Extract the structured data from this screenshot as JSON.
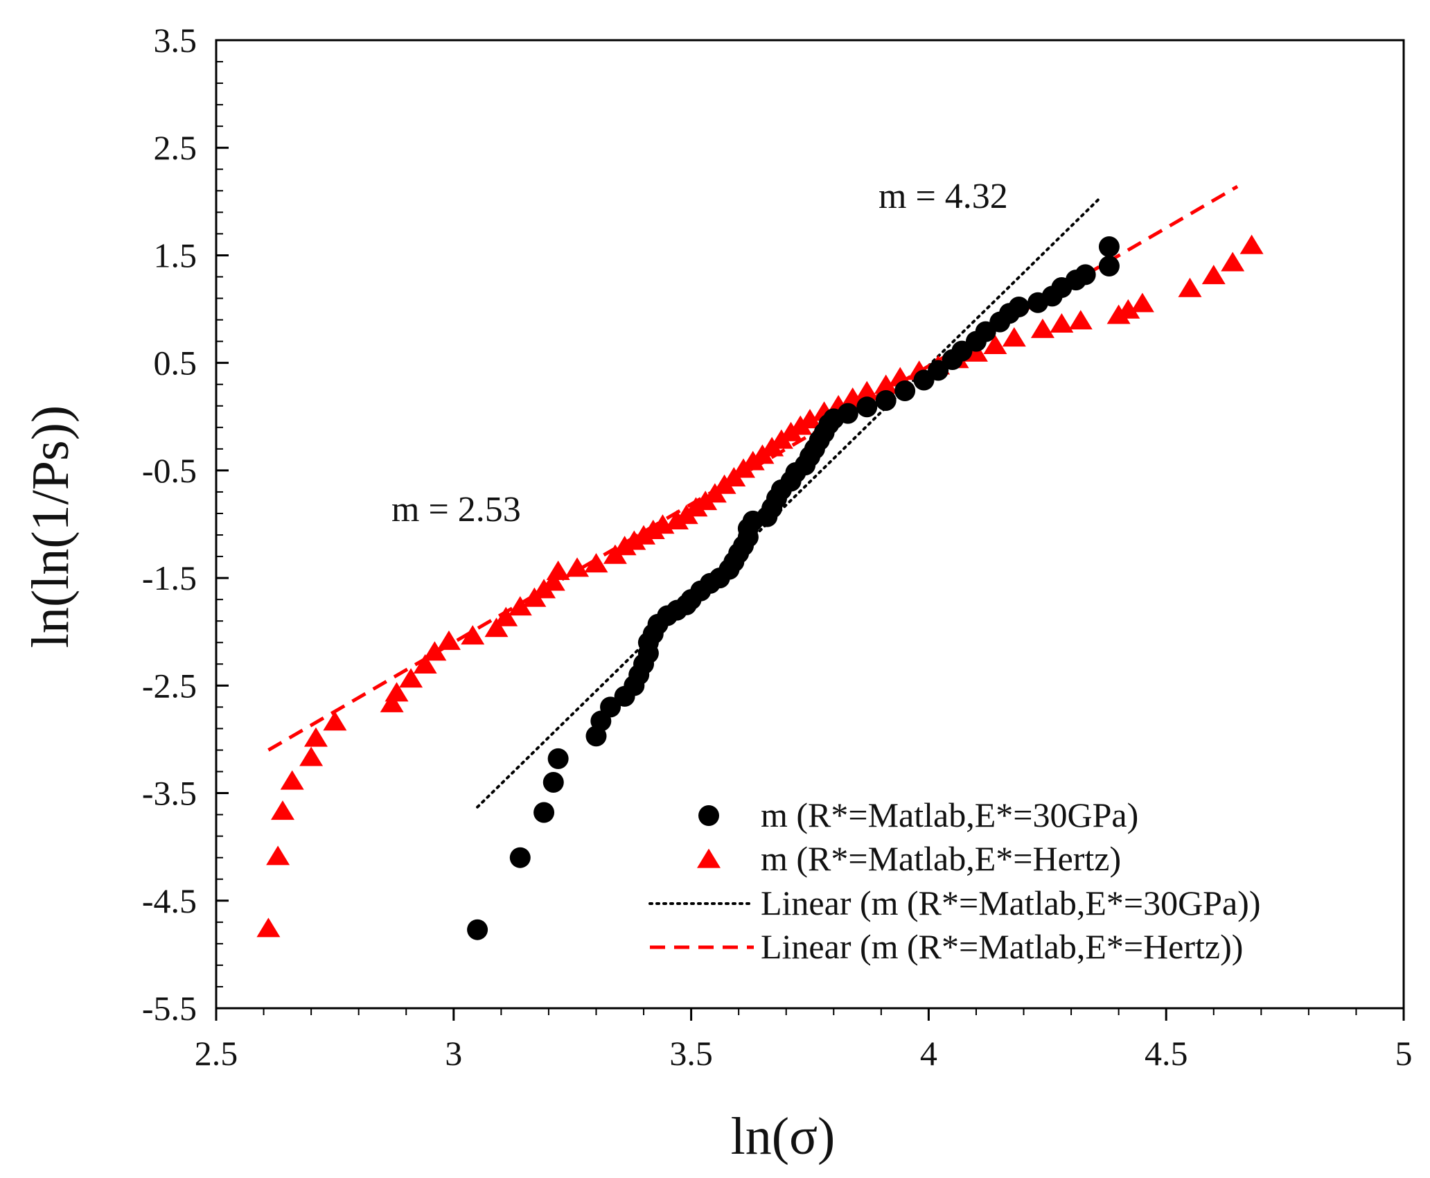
{
  "chart_data": {
    "type": "scatter",
    "title": "",
    "xlabel": "ln(σ)",
    "ylabel": "ln(ln(1/Ps))",
    "xlim": [
      2.5,
      5
    ],
    "ylim": [
      -5.5,
      3.5
    ],
    "x_ticks": [
      2.5,
      3,
      3.5,
      4,
      4.5,
      5
    ],
    "y_ticks": [
      -5.5,
      -4.5,
      -3.5,
      -2.5,
      -1.5,
      -0.5,
      0.5,
      1.5,
      2.5,
      3.5
    ],
    "x_tick_labels": [
      "2.5",
      "3",
      "3.5",
      "4",
      "4.5",
      "5"
    ],
    "y_tick_labels": [
      "-5.5",
      "-4.5",
      "-3.5",
      "-2.5",
      "-1.5",
      "-0.5",
      "0.5",
      "1.5",
      "2.5",
      "3.5"
    ],
    "grid": false,
    "legend_position": "bottom-right",
    "colors": {
      "black": "#000000",
      "red": "#ff0000"
    },
    "annotations": [
      {
        "text": "m = 4.32",
        "x": 4.02,
        "y": 2.1
      },
      {
        "text": "m = 2.53",
        "x": 3.0,
        "y": -0.85
      }
    ],
    "series": [
      {
        "name": "m (R*=Matlab,E*=30GPa)",
        "marker": "circle",
        "color": "#000000",
        "points": [
          [
            3.05,
            -4.77
          ],
          [
            3.14,
            -4.1
          ],
          [
            3.19,
            -3.68
          ],
          [
            3.21,
            -3.4
          ],
          [
            3.22,
            -3.18
          ],
          [
            3.3,
            -2.97
          ],
          [
            3.31,
            -2.83
          ],
          [
            3.33,
            -2.7
          ],
          [
            3.36,
            -2.6
          ],
          [
            3.38,
            -2.5
          ],
          [
            3.39,
            -2.4
          ],
          [
            3.4,
            -2.3
          ],
          [
            3.41,
            -2.2
          ],
          [
            3.41,
            -2.1
          ],
          [
            3.42,
            -2.02
          ],
          [
            3.43,
            -1.93
          ],
          [
            3.45,
            -1.85
          ],
          [
            3.47,
            -1.8
          ],
          [
            3.49,
            -1.75
          ],
          [
            3.5,
            -1.7
          ],
          [
            3.52,
            -1.62
          ],
          [
            3.54,
            -1.55
          ],
          [
            3.56,
            -1.5
          ],
          [
            3.58,
            -1.42
          ],
          [
            3.59,
            -1.35
          ],
          [
            3.6,
            -1.27
          ],
          [
            3.61,
            -1.2
          ],
          [
            3.62,
            -1.12
          ],
          [
            3.62,
            -1.04
          ],
          [
            3.63,
            -0.97
          ],
          [
            3.66,
            -0.93
          ],
          [
            3.67,
            -0.85
          ],
          [
            3.68,
            -0.76
          ],
          [
            3.69,
            -0.68
          ],
          [
            3.71,
            -0.6
          ],
          [
            3.72,
            -0.52
          ],
          [
            3.74,
            -0.45
          ],
          [
            3.75,
            -0.37
          ],
          [
            3.76,
            -0.3
          ],
          [
            3.77,
            -0.22
          ],
          [
            3.78,
            -0.15
          ],
          [
            3.79,
            -0.07
          ],
          [
            3.8,
            -0.02
          ],
          [
            3.83,
            0.03
          ],
          [
            3.87,
            0.09
          ],
          [
            3.91,
            0.15
          ],
          [
            3.95,
            0.24
          ],
          [
            3.99,
            0.34
          ],
          [
            4.02,
            0.43
          ],
          [
            4.05,
            0.53
          ],
          [
            4.07,
            0.61
          ],
          [
            4.1,
            0.7
          ],
          [
            4.12,
            0.79
          ],
          [
            4.15,
            0.88
          ],
          [
            4.17,
            0.96
          ],
          [
            4.19,
            1.02
          ],
          [
            4.23,
            1.06
          ],
          [
            4.26,
            1.12
          ],
          [
            4.28,
            1.2
          ],
          [
            4.31,
            1.27
          ],
          [
            4.33,
            1.32
          ],
          [
            4.38,
            1.4
          ],
          [
            4.38,
            1.58
          ]
        ]
      },
      {
        "name": "m (R*=Matlab,E*=Hertz)",
        "marker": "triangle",
        "color": "#ff0000",
        "points": [
          [
            2.61,
            -4.77
          ],
          [
            2.63,
            -4.1
          ],
          [
            2.64,
            -3.68
          ],
          [
            2.66,
            -3.4
          ],
          [
            2.7,
            -3.18
          ],
          [
            2.71,
            -3.0
          ],
          [
            2.75,
            -2.85
          ],
          [
            2.87,
            -2.68
          ],
          [
            2.88,
            -2.58
          ],
          [
            2.91,
            -2.45
          ],
          [
            2.94,
            -2.32
          ],
          [
            2.96,
            -2.2
          ],
          [
            2.99,
            -2.1
          ],
          [
            3.04,
            -2.05
          ],
          [
            3.09,
            -1.98
          ],
          [
            3.11,
            -1.88
          ],
          [
            3.14,
            -1.78
          ],
          [
            3.17,
            -1.7
          ],
          [
            3.19,
            -1.62
          ],
          [
            3.21,
            -1.55
          ],
          [
            3.22,
            -1.45
          ],
          [
            3.26,
            -1.42
          ],
          [
            3.3,
            -1.38
          ],
          [
            3.34,
            -1.3
          ],
          [
            3.36,
            -1.22
          ],
          [
            3.38,
            -1.17
          ],
          [
            3.4,
            -1.12
          ],
          [
            3.42,
            -1.07
          ],
          [
            3.44,
            -1.02
          ],
          [
            3.47,
            -0.98
          ],
          [
            3.49,
            -0.93
          ],
          [
            3.51,
            -0.86
          ],
          [
            3.53,
            -0.8
          ],
          [
            3.55,
            -0.73
          ],
          [
            3.57,
            -0.65
          ],
          [
            3.59,
            -0.58
          ],
          [
            3.61,
            -0.5
          ],
          [
            3.63,
            -0.43
          ],
          [
            3.65,
            -0.37
          ],
          [
            3.67,
            -0.3
          ],
          [
            3.69,
            -0.23
          ],
          [
            3.71,
            -0.16
          ],
          [
            3.73,
            -0.1
          ],
          [
            3.75,
            -0.04
          ],
          [
            3.78,
            0.03
          ],
          [
            3.81,
            0.09
          ],
          [
            3.84,
            0.16
          ],
          [
            3.87,
            0.22
          ],
          [
            3.91,
            0.28
          ],
          [
            3.94,
            0.35
          ],
          [
            3.98,
            0.41
          ],
          [
            4.02,
            0.46
          ],
          [
            4.06,
            0.52
          ],
          [
            4.1,
            0.58
          ],
          [
            4.14,
            0.65
          ],
          [
            4.18,
            0.72
          ],
          [
            4.24,
            0.8
          ],
          [
            4.28,
            0.85
          ],
          [
            4.32,
            0.88
          ],
          [
            4.4,
            0.93
          ],
          [
            4.42,
            0.98
          ],
          [
            4.45,
            1.04
          ],
          [
            4.55,
            1.18
          ],
          [
            4.6,
            1.3
          ],
          [
            4.64,
            1.42
          ],
          [
            4.68,
            1.58
          ]
        ]
      }
    ],
    "trendlines": [
      {
        "name": "Linear (m (R*=Matlab,E*=30GPa))",
        "style": "dotted",
        "color": "#000000",
        "slope": 4.32,
        "x_range": [
          3.05,
          4.36
        ],
        "points": [
          [
            3.05,
            -3.63
          ],
          [
            4.36,
            2.03
          ]
        ]
      },
      {
        "name": "Linear (m (R*=Matlab,E*=Hertz))",
        "style": "dashed",
        "color": "#ff0000",
        "slope": 2.53,
        "x_range": [
          2.61,
          4.65
        ],
        "points": [
          [
            2.61,
            -3.1
          ],
          [
            4.65,
            2.14
          ]
        ]
      }
    ]
  }
}
